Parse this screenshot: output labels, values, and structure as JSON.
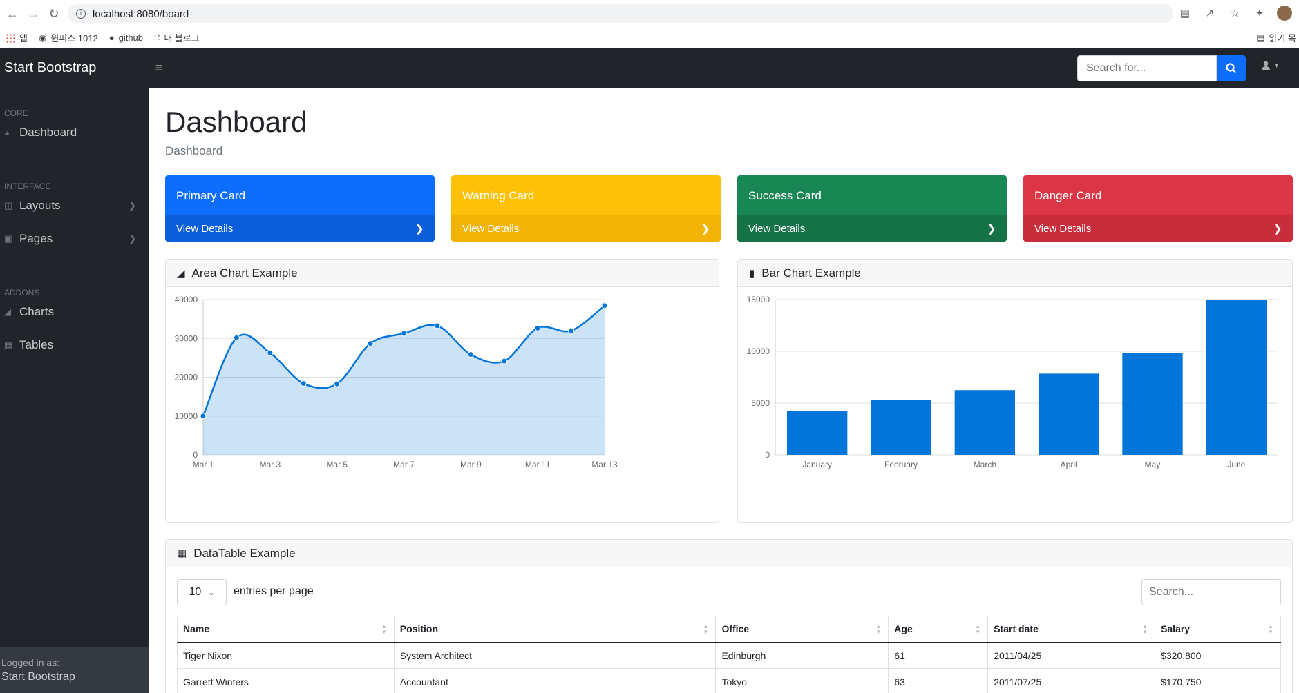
{
  "browser": {
    "url": "localhost:8080/board",
    "bookmarks": [
      {
        "label": "앱"
      },
      {
        "label": "원피스 1012"
      },
      {
        "label": "github"
      },
      {
        "label": "내 블로그"
      }
    ],
    "reading_list": "읽기 목"
  },
  "topnav": {
    "brand": "Start Bootstrap",
    "search_placeholder": "Search for..."
  },
  "sidebar": {
    "headings": [
      "Core",
      "Interface",
      "Addons"
    ],
    "items": [
      {
        "label": "Dashboard",
        "icon": "tachometer-icon"
      },
      {
        "label": "Layouts",
        "icon": "columns-icon"
      },
      {
        "label": "Pages",
        "icon": "book-icon"
      },
      {
        "label": "Charts",
        "icon": "chart-area-icon"
      },
      {
        "label": "Tables",
        "icon": "table-icon"
      }
    ],
    "footer_small": "Logged in as:",
    "footer_name": "Start Bootstrap"
  },
  "page": {
    "title": "Dashboard",
    "breadcrumb": "Dashboard"
  },
  "cards": [
    {
      "title": "Primary Card",
      "link": "View Details",
      "color": "#0d6efd",
      "footer": "#0b5ed7"
    },
    {
      "title": "Warning Card",
      "link": "View Details",
      "color": "#ffc107",
      "footer": "#f0b306"
    },
    {
      "title": "Success Card",
      "link": "View Details",
      "color": "#198754",
      "footer": "#157347"
    },
    {
      "title": "Danger Card",
      "link": "View Details",
      "color": "#dc3545",
      "footer": "#c82d3c"
    }
  ],
  "area_panel": {
    "title": "Area Chart Example"
  },
  "bar_panel": {
    "title": "Bar Chart Example"
  },
  "chart_data": [
    {
      "type": "area",
      "title": "",
      "x": [
        "Mar 1",
        "Mar 2",
        "Mar 3",
        "Mar 4",
        "Mar 5",
        "Mar 6",
        "Mar 7",
        "Mar 8",
        "Mar 9",
        "Mar 10",
        "Mar 11",
        "Mar 12",
        "Mar 13"
      ],
      "tick_labels": [
        "Mar 1",
        "Mar 3",
        "Mar 5",
        "Mar 7",
        "Mar 9",
        "Mar 11",
        "Mar 13"
      ],
      "values": [
        10000,
        30162,
        26263,
        18394,
        18287,
        28682,
        31274,
        33259,
        25849,
        24159,
        32651,
        31984,
        38451
      ],
      "ylim": [
        0,
        40000
      ],
      "yticks": [
        0,
        10000,
        20000,
        30000,
        40000
      ],
      "color": "#0275d8",
      "fill": "rgba(2,117,216,0.2)",
      "grid": true
    },
    {
      "type": "bar",
      "title": "",
      "categories": [
        "January",
        "February",
        "March",
        "April",
        "May",
        "June"
      ],
      "values": [
        4215,
        5312,
        6251,
        7841,
        9821,
        14984
      ],
      "ylim": [
        0,
        15000
      ],
      "yticks": [
        0,
        5000,
        10000,
        15000
      ],
      "color": "#0275d8",
      "grid": true
    }
  ],
  "datatable": {
    "title": "DataTable Example",
    "per_page": "10",
    "per_page_label": "entries per page",
    "search_placeholder": "Search...",
    "columns": [
      "Name",
      "Position",
      "Office",
      "Age",
      "Start date",
      "Salary"
    ],
    "rows": [
      [
        "Tiger Nixon",
        "System Architect",
        "Edinburgh",
        "61",
        "2011/04/25",
        "$320,800"
      ],
      [
        "Garrett Winters",
        "Accountant",
        "Tokyo",
        "63",
        "2011/07/25",
        "$170,750"
      ]
    ]
  }
}
